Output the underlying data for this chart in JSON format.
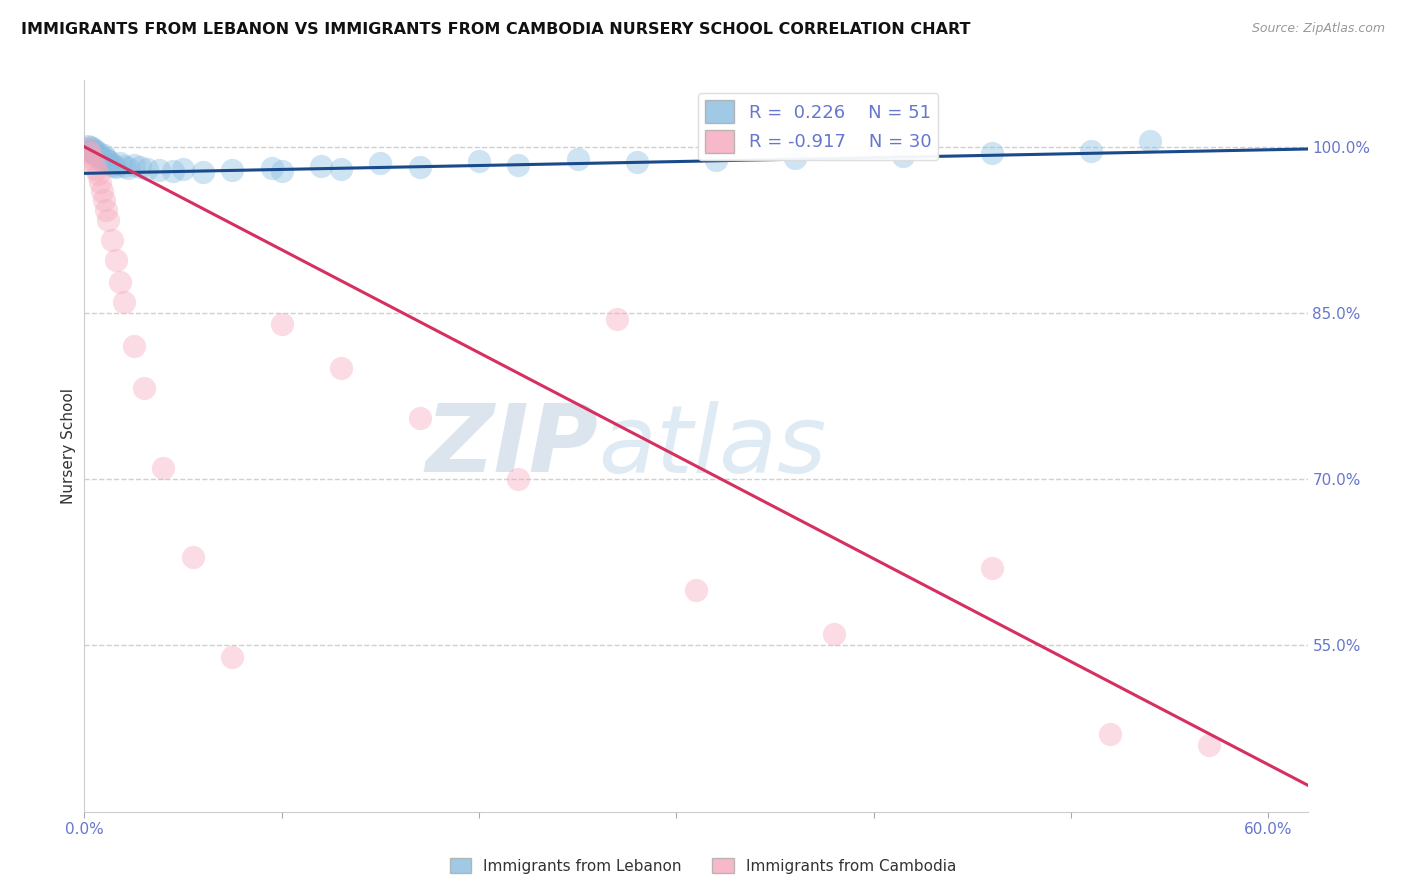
{
  "title": "IMMIGRANTS FROM LEBANON VS IMMIGRANTS FROM CAMBODIA NURSERY SCHOOL CORRELATION CHART",
  "source": "Source: ZipAtlas.com",
  "ylabel": "Nursery School",
  "xlim": [
    0.0,
    0.62
  ],
  "ylim": [
    0.4,
    1.06
  ],
  "xticks": [
    0.0,
    0.1,
    0.2,
    0.3,
    0.4,
    0.5,
    0.6
  ],
  "xticklabels": [
    "0.0%",
    "",
    "",
    "",
    "",
    "",
    "60.0%"
  ],
  "ytick_positions": [
    0.55,
    0.7,
    0.85,
    1.0
  ],
  "ytick_labels": [
    "55.0%",
    "70.0%",
    "85.0%",
    "100.0%"
  ],
  "legend_R_blue": "0.226",
  "legend_N_blue": "51",
  "legend_R_pink": "-0.917",
  "legend_N_pink": "30",
  "blue_dot_color": "#88bce0",
  "pink_dot_color": "#f5a8bc",
  "blue_line_color": "#1a4a8a",
  "pink_line_color": "#d63060",
  "lebanon_x": [
    0.001,
    0.002,
    0.002,
    0.003,
    0.003,
    0.004,
    0.004,
    0.005,
    0.005,
    0.006,
    0.006,
    0.007,
    0.007,
    0.008,
    0.008,
    0.009,
    0.01,
    0.01,
    0.011,
    0.012,
    0.013,
    0.014,
    0.015,
    0.016,
    0.018,
    0.02,
    0.022,
    0.025,
    0.028,
    0.032,
    0.038,
    0.045,
    0.05,
    0.06,
    0.075,
    0.095,
    0.12,
    0.15,
    0.2,
    0.25,
    0.1,
    0.13,
    0.17,
    0.22,
    0.28,
    0.32,
    0.36,
    0.415,
    0.46,
    0.51,
    0.54
  ],
  "lebanon_y": [
    0.995,
    0.998,
    1.001,
    0.997,
    1.0,
    0.996,
    0.999,
    0.994,
    0.997,
    0.993,
    0.996,
    0.991,
    0.994,
    0.989,
    0.992,
    0.988,
    0.99,
    0.993,
    0.989,
    0.987,
    0.986,
    0.984,
    0.983,
    0.982,
    0.985,
    0.983,
    0.981,
    0.984,
    0.982,
    0.98,
    0.979,
    0.978,
    0.98,
    0.977,
    0.979,
    0.981,
    0.983,
    0.985,
    0.987,
    0.989,
    0.978,
    0.98,
    0.982,
    0.984,
    0.986,
    0.988,
    0.99,
    0.992,
    0.994,
    0.996,
    1.005
  ],
  "cambodia_x": [
    0.002,
    0.003,
    0.004,
    0.005,
    0.006,
    0.007,
    0.008,
    0.009,
    0.01,
    0.011,
    0.012,
    0.014,
    0.016,
    0.018,
    0.02,
    0.025,
    0.03,
    0.04,
    0.055,
    0.075,
    0.1,
    0.13,
    0.17,
    0.22,
    0.27,
    0.31,
    0.38,
    0.46,
    0.52,
    0.57
  ],
  "cambodia_y": [
    0.998,
    0.994,
    0.99,
    0.986,
    0.98,
    0.975,
    0.968,
    0.96,
    0.952,
    0.943,
    0.934,
    0.916,
    0.898,
    0.878,
    0.86,
    0.82,
    0.782,
    0.71,
    0.63,
    0.54,
    0.84,
    0.8,
    0.755,
    0.7,
    0.845,
    0.6,
    0.56,
    0.62,
    0.47,
    0.46
  ],
  "blue_trend_x": [
    0.0,
    0.62
  ],
  "blue_trend_y": [
    0.976,
    0.998
  ],
  "pink_trend_x": [
    0.0,
    0.62
  ],
  "pink_trend_y": [
    1.0,
    0.424
  ],
  "watermark_zip": "ZIP",
  "watermark_atlas": "atlas",
  "bg_color": "#ffffff",
  "grid_color": "#d0d0d0",
  "legend_label_blue": "Immigrants from Lebanon",
  "legend_label_pink": "Immigrants from Cambodia",
  "tick_color": "#6677cc"
}
